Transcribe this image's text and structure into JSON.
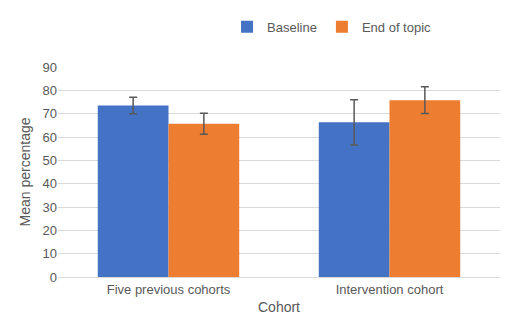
{
  "chart_data": {
    "type": "bar",
    "x_label": "Cohort",
    "y_label": "Mean percentage",
    "categories": [
      "Five previous cohorts",
      "Intervention cohort"
    ],
    "series": [
      {
        "name": "Baseline",
        "color": "#4472c4",
        "values": [
          73.5,
          66.3
        ],
        "errors": [
          3.5,
          9.7
        ]
      },
      {
        "name": "End of topic",
        "color": "#ed7d31",
        "values": [
          65.7,
          75.8
        ],
        "errors": [
          4.5,
          5.7
        ]
      }
    ],
    "ylim": [
      0,
      90
    ],
    "yticks": [
      0,
      10,
      20,
      30,
      40,
      50,
      60,
      70,
      80,
      90
    ],
    "grid": true,
    "legend": "top"
  }
}
